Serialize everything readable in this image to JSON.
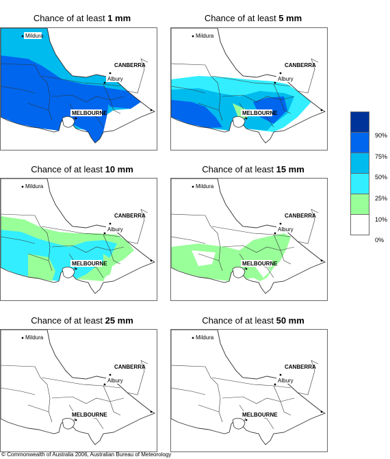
{
  "panels": [
    {
      "prefix": "Chance of at least ",
      "amount": "1 mm"
    },
    {
      "prefix": "Chance of at least ",
      "amount": "5 mm"
    },
    {
      "prefix": "Chance of at least ",
      "amount": "10 mm"
    },
    {
      "prefix": "Chance of at least ",
      "amount": "15 mm"
    },
    {
      "prefix": "Chance of at least ",
      "amount": "25 mm"
    },
    {
      "prefix": "Chance of at least ",
      "amount": "50 mm"
    }
  ],
  "places": {
    "mildura": "Mildura",
    "canberra": "CANBERRA",
    "albury": "Albury",
    "melbourne": "MELBOURNE"
  },
  "legend": {
    "colors": [
      "#003399",
      "#0066ee",
      "#00bbee",
      "#33eeff",
      "#99ff99",
      "#ffffff"
    ],
    "labels": [
      "90%",
      "75%",
      "50%",
      "25%",
      "10%",
      "0%"
    ]
  },
  "copyright": "© Commonwealth of Australia 2006, Australian Bureau of Meteorology"
}
